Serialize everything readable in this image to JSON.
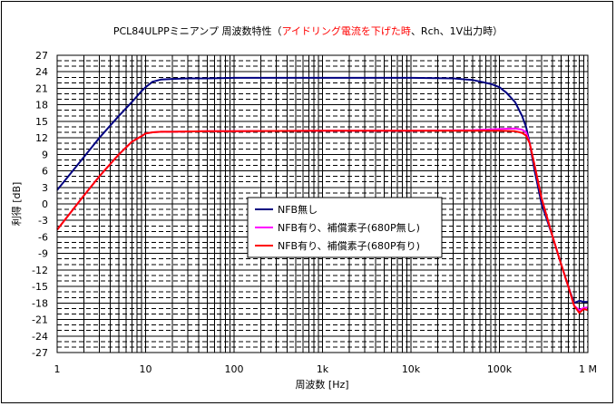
{
  "chart_data": {
    "type": "line",
    "title_parts": [
      "PCL84ULPPミニアンプ 周波数特性（",
      "アイドリング電流を下げた時",
      "、Rch、1V出力時）"
    ],
    "xlabel": "周波数 [Hz]",
    "ylabel": "利得 [dB]",
    "xscale": "log",
    "xlim": [
      1,
      1000000
    ],
    "ylim": [
      -27,
      27
    ],
    "x_tick_labels": [
      "1",
      "10",
      "100",
      "1k",
      "10k",
      "100k",
      "1 M"
    ],
    "y_ticks": [
      27,
      24,
      21,
      18,
      15,
      12,
      9,
      6,
      3,
      0,
      -3,
      -6,
      -9,
      -12,
      -15,
      -18,
      -21,
      -24,
      -27
    ],
    "grid": true,
    "legend_position": "center-right",
    "series": [
      {
        "name": "NFB無し",
        "color": "#000080",
        "x": [
          1,
          2,
          3,
          5,
          7,
          9,
          10,
          12,
          15,
          20,
          30,
          50,
          100,
          1000,
          10000,
          30000,
          50000,
          80000,
          100000,
          120000,
          150000,
          180000,
          200000,
          220000,
          250000,
          300000,
          400000,
          500000,
          600000,
          700000,
          800000,
          900000,
          1000000
        ],
        "y": [
          2.5,
          8.5,
          12,
          16,
          18.5,
          20.5,
          21.2,
          22.2,
          22.6,
          22.7,
          22.8,
          22.8,
          22.9,
          22.9,
          22.9,
          22.8,
          22.5,
          21.8,
          21.2,
          20.2,
          18.5,
          16,
          14,
          11,
          6,
          0,
          -6,
          -11,
          -15,
          -18,
          -17.6,
          -17.8,
          -17.8
        ]
      },
      {
        "name": "NFB有り、補償素子(680P無し)",
        "color": "#ff00ff",
        "x": [
          1,
          2,
          3,
          5,
          7,
          9,
          10,
          12,
          15,
          20,
          50,
          100,
          1000,
          10000,
          50000,
          100000,
          150000,
          180000,
          200000,
          220000,
          250000,
          300000,
          400000,
          500000,
          600000,
          700000,
          800000,
          900000,
          1000000
        ],
        "y": [
          -4.7,
          1.5,
          5,
          9,
          11.3,
          12.3,
          12.8,
          13,
          13.1,
          13.1,
          13.2,
          13.2,
          13.3,
          13.3,
          13.4,
          13.6,
          13.7,
          13.5,
          13,
          11,
          7,
          1,
          -6,
          -11,
          -15,
          -18.5,
          -19.3,
          -18.9,
          -18.8
        ]
      },
      {
        "name": "NFB有り、補償素子(680P有り)",
        "color": "#ff0000",
        "x": [
          1,
          2,
          3,
          5,
          7,
          9,
          10,
          12,
          15,
          20,
          50,
          100,
          1000,
          10000,
          50000,
          100000,
          150000,
          180000,
          200000,
          220000,
          250000,
          300000,
          400000,
          500000,
          600000,
          700000,
          800000,
          900000,
          1000000
        ],
        "y": [
          -4.7,
          1.5,
          5,
          9,
          11.3,
          12.3,
          12.8,
          13,
          13.1,
          13.1,
          13.2,
          13.2,
          13.3,
          13.3,
          13.3,
          13.3,
          13.2,
          12.9,
          12.4,
          11,
          7,
          1,
          -6,
          -11,
          -15,
          -18.5,
          -19.8,
          -19.1,
          -19.3
        ]
      }
    ]
  }
}
